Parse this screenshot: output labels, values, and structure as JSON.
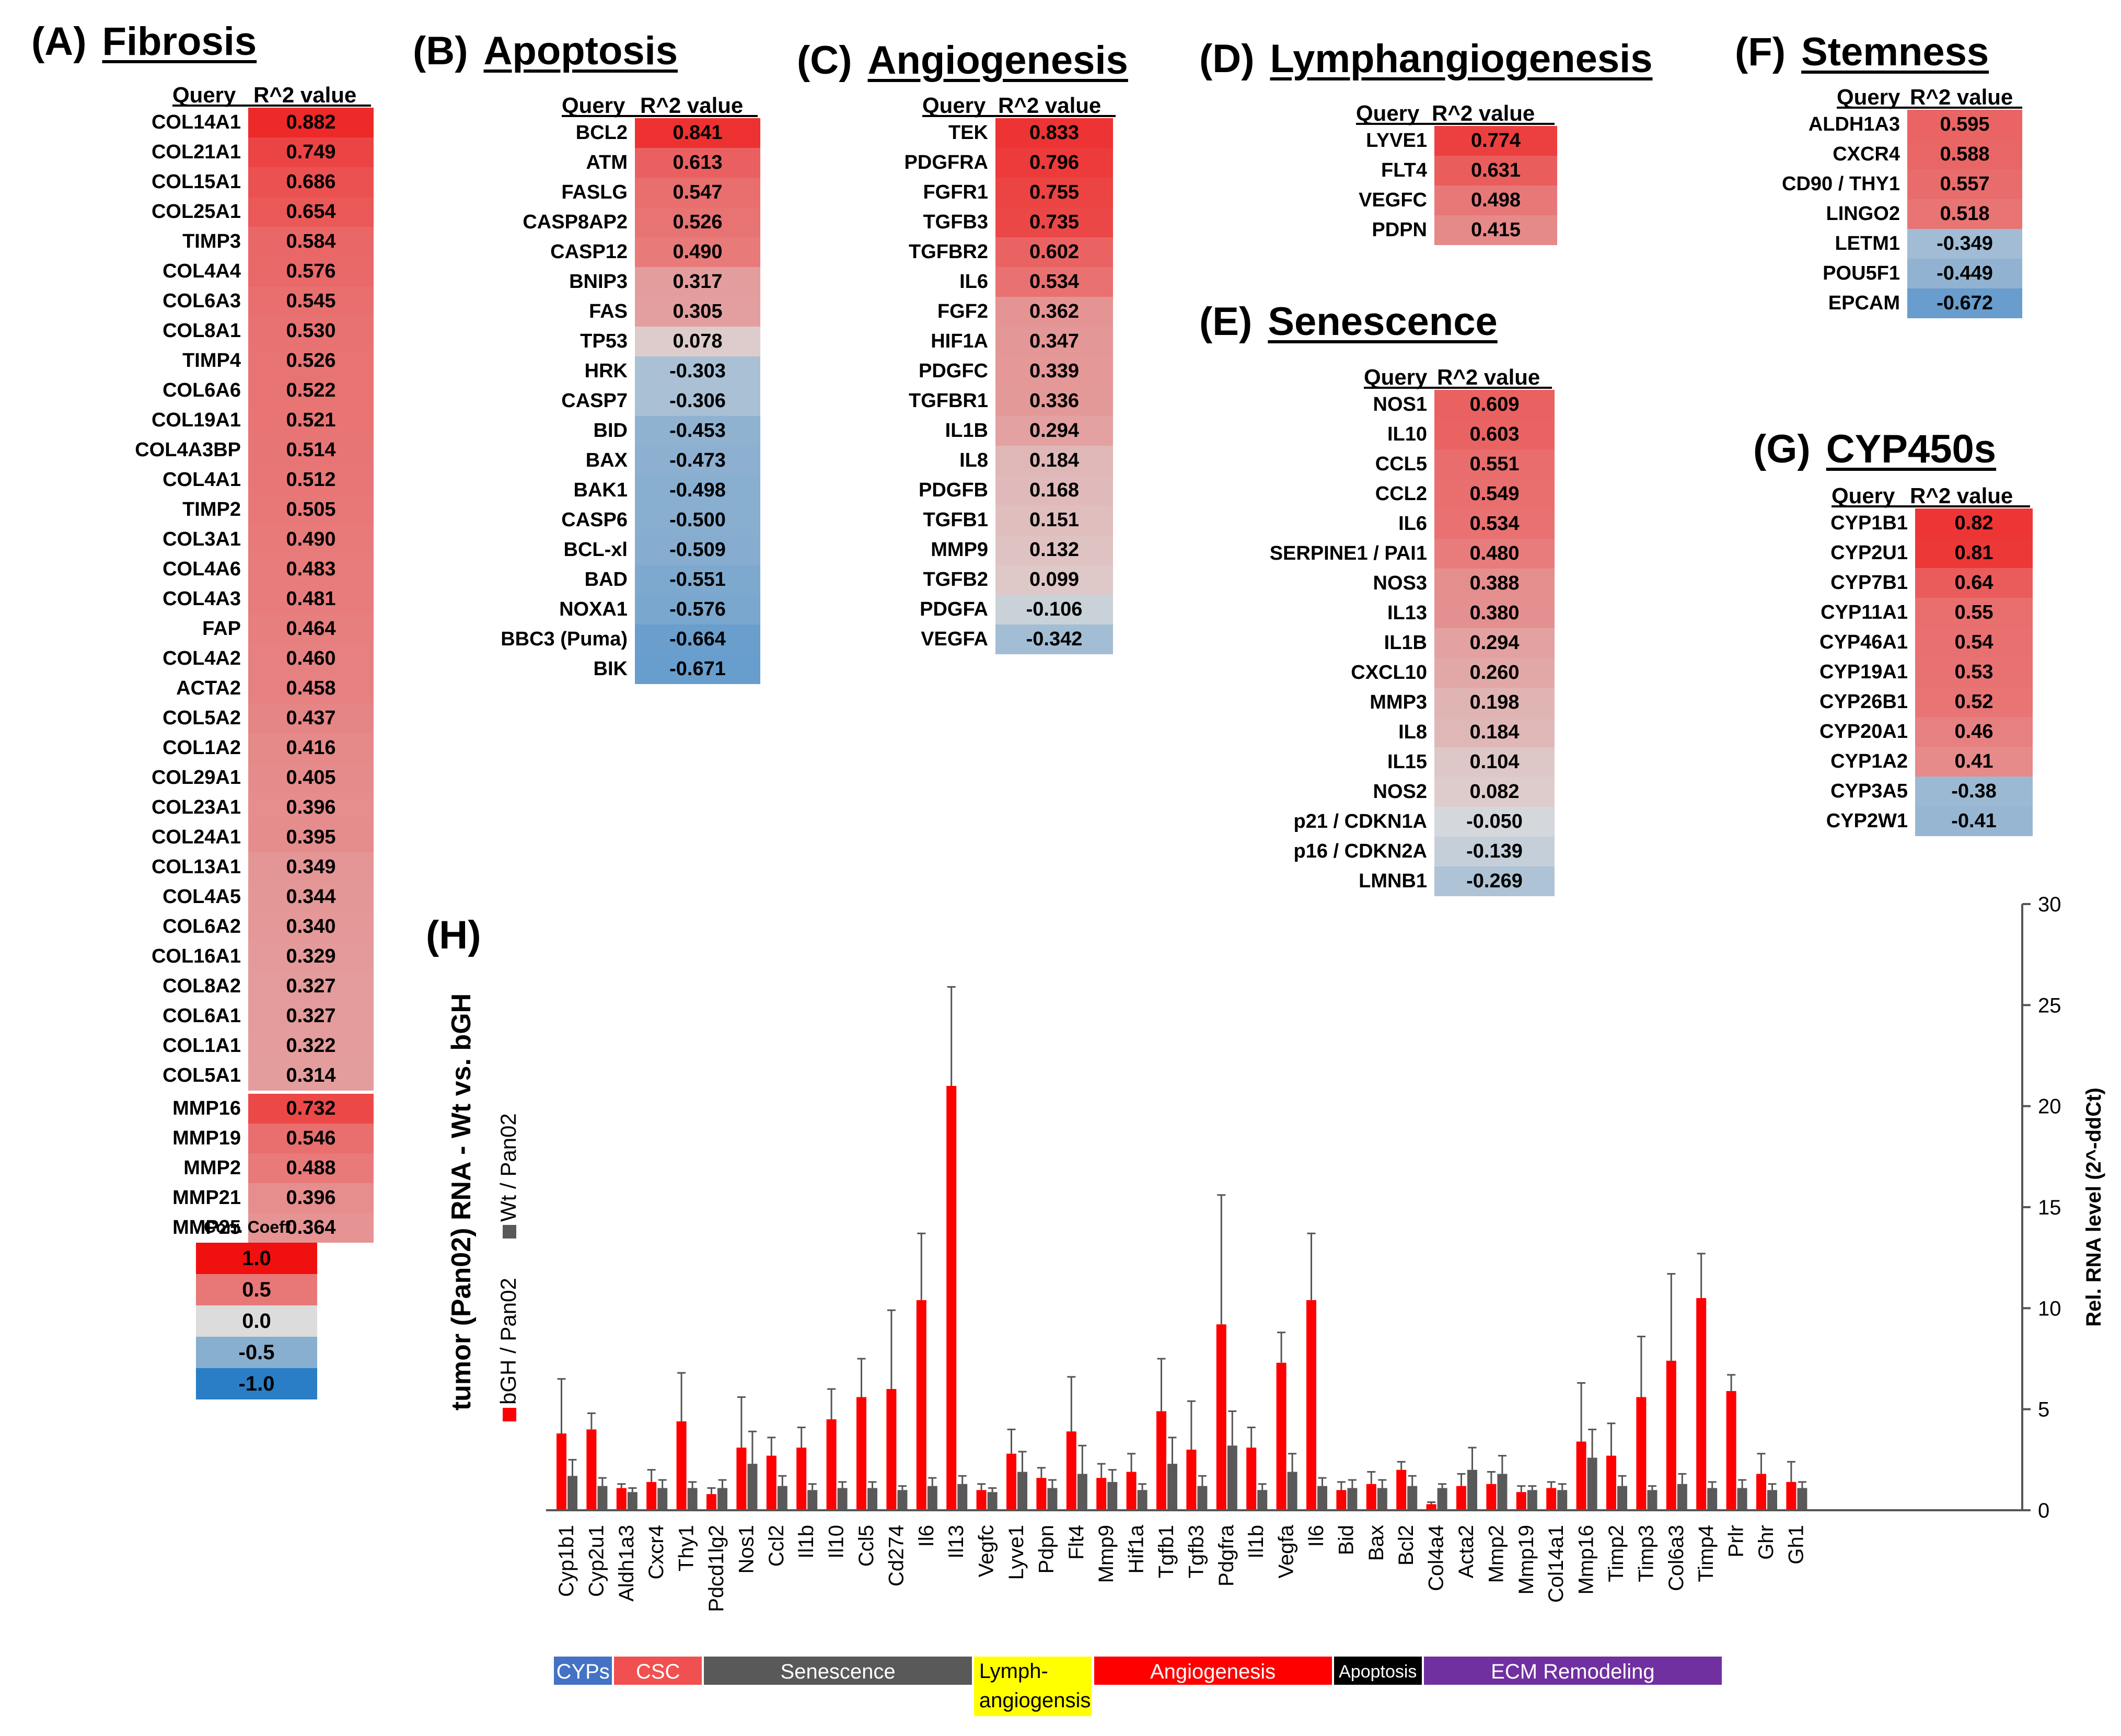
{
  "colors": {
    "high": "#f01010",
    "mid_pos": "#e87878",
    "zero": "#dcdcdc",
    "mid_neg": "#88aed0",
    "low": "#2a7ec6"
  },
  "header_query": "Query",
  "header_value": "R^2 value",
  "panels": {
    "A": {
      "letter": "(A)",
      "title": "Fibrosis",
      "rows": [
        {
          "q": "COL14A1",
          "v": "0.882"
        },
        {
          "q": "COL21A1",
          "v": "0.749"
        },
        {
          "q": "COL15A1",
          "v": "0.686"
        },
        {
          "q": "COL25A1",
          "v": "0.654"
        },
        {
          "q": "TIMP3",
          "v": "0.584"
        },
        {
          "q": "COL4A4",
          "v": "0.576"
        },
        {
          "q": "COL6A3",
          "v": "0.545"
        },
        {
          "q": "COL8A1",
          "v": "0.530"
        },
        {
          "q": "TIMP4",
          "v": "0.526"
        },
        {
          "q": "COL6A6",
          "v": "0.522"
        },
        {
          "q": "COL19A1",
          "v": "0.521"
        },
        {
          "q": "COL4A3BP",
          "v": "0.514"
        },
        {
          "q": "COL4A1",
          "v": "0.512"
        },
        {
          "q": "TIMP2",
          "v": "0.505"
        },
        {
          "q": "COL3A1",
          "v": "0.490"
        },
        {
          "q": "COL4A6",
          "v": "0.483"
        },
        {
          "q": "COL4A3",
          "v": "0.481"
        },
        {
          "q": "FAP",
          "v": "0.464"
        },
        {
          "q": "COL4A2",
          "v": "0.460"
        },
        {
          "q": "ACTA2",
          "v": "0.458"
        },
        {
          "q": "COL5A2",
          "v": "0.437"
        },
        {
          "q": "COL1A2",
          "v": "0.416"
        },
        {
          "q": "COL29A1",
          "v": "0.405"
        },
        {
          "q": "COL23A1",
          "v": "0.396"
        },
        {
          "q": "COL24A1",
          "v": "0.395"
        },
        {
          "q": "COL13A1",
          "v": "0.349"
        },
        {
          "q": "COL4A5",
          "v": "0.344"
        },
        {
          "q": "COL6A2",
          "v": "0.340"
        },
        {
          "q": "COL16A1",
          "v": "0.329"
        },
        {
          "q": "COL8A2",
          "v": "0.327"
        },
        {
          "q": "COL6A1",
          "v": "0.327"
        },
        {
          "q": "COL1A1",
          "v": "0.322"
        },
        {
          "q": "COL5A1",
          "v": "0.314"
        }
      ],
      "rows2": [
        {
          "q": "MMP16",
          "v": "0.732"
        },
        {
          "q": "MMP19",
          "v": "0.546"
        },
        {
          "q": "MMP2",
          "v": "0.488"
        },
        {
          "q": "MMP21",
          "v": "0.396"
        },
        {
          "q": "MMP25",
          "v": "0.364"
        }
      ]
    },
    "B": {
      "letter": "(B)",
      "title": "Apoptosis",
      "rows": [
        {
          "q": "BCL2",
          "v": "0.841"
        },
        {
          "q": "ATM",
          "v": "0.613"
        },
        {
          "q": "FASLG",
          "v": "0.547"
        },
        {
          "q": "CASP8AP2",
          "v": "0.526"
        },
        {
          "q": "CASP12",
          "v": "0.490"
        },
        {
          "q": "BNIP3",
          "v": "0.317"
        },
        {
          "q": "FAS",
          "v": "0.305"
        },
        {
          "q": "TP53",
          "v": "0.078"
        },
        {
          "q": "HRK",
          "v": "-0.303"
        },
        {
          "q": "CASP7",
          "v": "-0.306"
        },
        {
          "q": "BID",
          "v": "-0.453"
        },
        {
          "q": "BAX",
          "v": "-0.473"
        },
        {
          "q": "BAK1",
          "v": "-0.498"
        },
        {
          "q": "CASP6",
          "v": "-0.500"
        },
        {
          "q": "BCL-xl",
          "v": "-0.509"
        },
        {
          "q": "BAD",
          "v": "-0.551"
        },
        {
          "q": "NOXA1",
          "v": "-0.576"
        },
        {
          "q": "BBC3 (Puma)",
          "v": "-0.664"
        },
        {
          "q": "BIK",
          "v": "-0.671"
        }
      ]
    },
    "C": {
      "letter": "(C)",
      "title": "Angiogenesis",
      "rows": [
        {
          "q": "TEK",
          "v": "0.833"
        },
        {
          "q": "PDGFRA",
          "v": "0.796"
        },
        {
          "q": "FGFR1",
          "v": "0.755"
        },
        {
          "q": "TGFB3",
          "v": "0.735"
        },
        {
          "q": "TGFBR2",
          "v": "0.602"
        },
        {
          "q": "IL6",
          "v": "0.534"
        },
        {
          "q": "FGF2",
          "v": "0.362"
        },
        {
          "q": "HIF1A",
          "v": "0.347"
        },
        {
          "q": "PDGFC",
          "v": "0.339"
        },
        {
          "q": "TGFBR1",
          "v": "0.336"
        },
        {
          "q": "IL1B",
          "v": "0.294"
        },
        {
          "q": "IL8",
          "v": "0.184"
        },
        {
          "q": "PDGFB",
          "v": "0.168"
        },
        {
          "q": "TGFB1",
          "v": "0.151"
        },
        {
          "q": "MMP9",
          "v": "0.132"
        },
        {
          "q": "TGFB2",
          "v": "0.099"
        },
        {
          "q": "PDGFA",
          "v": "-0.106"
        },
        {
          "q": "VEGFA",
          "v": "-0.342"
        }
      ]
    },
    "D": {
      "letter": "(D)",
      "title": "Lymphangiogenesis",
      "rows": [
        {
          "q": "LYVE1",
          "v": "0.774"
        },
        {
          "q": "FLT4",
          "v": "0.631"
        },
        {
          "q": "VEGFC",
          "v": "0.498"
        },
        {
          "q": "PDPN",
          "v": "0.415"
        }
      ]
    },
    "E": {
      "letter": "(E)",
      "title": "Senescence",
      "rows": [
        {
          "q": "NOS1",
          "v": "0.609"
        },
        {
          "q": "IL10",
          "v": "0.603"
        },
        {
          "q": "CCL5",
          "v": "0.551"
        },
        {
          "q": "CCL2",
          "v": "0.549"
        },
        {
          "q": "IL6",
          "v": "0.534"
        },
        {
          "q": "SERPINE1 / PAI1",
          "v": "0.480"
        },
        {
          "q": "NOS3",
          "v": "0.388"
        },
        {
          "q": "IL13",
          "v": "0.380"
        },
        {
          "q": "IL1B",
          "v": "0.294"
        },
        {
          "q": "CXCL10",
          "v": "0.260"
        },
        {
          "q": "MMP3",
          "v": "0.198"
        },
        {
          "q": "IL8",
          "v": "0.184"
        },
        {
          "q": "IL15",
          "v": "0.104"
        },
        {
          "q": "NOS2",
          "v": "0.082"
        },
        {
          "q": "p21 / CDKN1A",
          "v": "-0.050"
        },
        {
          "q": "p16 / CDKN2A",
          "v": "-0.139"
        },
        {
          "q": "LMNB1",
          "v": "-0.269"
        }
      ]
    },
    "F": {
      "letter": "(F)",
      "title": "Stemness",
      "rows": [
        {
          "q": "ALDH1A3",
          "v": "0.595"
        },
        {
          "q": "CXCR4",
          "v": "0.588"
        },
        {
          "q": "CD90 / THY1",
          "v": "0.557"
        },
        {
          "q": "LINGO2",
          "v": "0.518"
        },
        {
          "q": "LETM1",
          "v": "-0.349"
        },
        {
          "q": "POU5F1",
          "v": "-0.449"
        },
        {
          "q": "EPCAM",
          "v": "-0.672"
        }
      ]
    },
    "G": {
      "letter": "(G)",
      "title": "CYP450s",
      "rows": [
        {
          "q": "CYP1B1",
          "v": "0.82"
        },
        {
          "q": "CYP2U1",
          "v": "0.81"
        },
        {
          "q": "CYP7B1",
          "v": "0.64"
        },
        {
          "q": "CYP11A1",
          "v": "0.55"
        },
        {
          "q": "CYP46A1",
          "v": "0.54"
        },
        {
          "q": "CYP19A1",
          "v": "0.53"
        },
        {
          "q": "CYP26B1",
          "v": "0.52"
        },
        {
          "q": "CYP20A1",
          "v": "0.46"
        },
        {
          "q": "CYP1A2",
          "v": "0.41"
        },
        {
          "q": "CYP3A5",
          "v": "-0.38"
        },
        {
          "q": "CYP2W1",
          "v": "-0.41"
        }
      ]
    }
  },
  "legend": {
    "title": "Corr. Coeff",
    "values": [
      "1.0",
      "0.5",
      "0.0",
      "-0.5",
      "-1.0"
    ]
  },
  "chart_data": {
    "type": "bar",
    "panel_label": "(H)",
    "title": "",
    "xlabel": "",
    "ylabel_left": "tumor (Pan02) RNA - Wt vs. bGH",
    "ylabel": "Rel. RNA level (2^-ddCt)",
    "ylim": [
      0,
      30
    ],
    "yticks": [
      0,
      5,
      10,
      15,
      20,
      25,
      30
    ],
    "categories": [
      "Cyp1b1",
      "Cyp2u1",
      "Aldh1a3",
      "Cxcr4",
      "Thy1",
      "Pdcd1lg2",
      "Nos1",
      "Ccl2",
      "Il1b",
      "Il10",
      "Ccl5",
      "Cd274",
      "Il6",
      "Il13",
      "Vegfc",
      "Lyve1",
      "Pdpn",
      "Flt4",
      "Mmp9",
      "Hif1a",
      "Tgfb1",
      "Tgfb3",
      "Pdgfra",
      "Il1b",
      "Vegfa",
      "Il6",
      "Bid",
      "Bax",
      "Bcl2",
      "Col4a4",
      "Acta2",
      "Mmp2",
      "Mmp19",
      "Col14a1",
      "Mmp16",
      "Timp2",
      "Timp3",
      "Col6a3",
      "Timp4",
      "Prlr",
      "Ghr",
      "Gh1"
    ],
    "series": [
      {
        "name": "bGH / Pan02",
        "color": "#ff0000",
        "values": [
          3.8,
          4.0,
          1.1,
          1.4,
          4.4,
          0.8,
          3.1,
          2.7,
          3.1,
          4.5,
          5.6,
          6.0,
          10.4,
          21.0,
          1.0,
          2.8,
          1.6,
          3.9,
          1.6,
          1.9,
          4.9,
          3.0,
          9.2,
          3.1,
          7.3,
          10.4,
          1.0,
          1.3,
          2.0,
          0.3,
          1.2,
          1.3,
          0.9,
          1.1,
          3.4,
          2.7,
          5.6,
          7.4,
          10.5,
          5.9,
          1.8,
          1.4
        ],
        "errors": [
          2.7,
          0.8,
          0.2,
          0.6,
          2.4,
          0.3,
          2.5,
          0.9,
          1.0,
          1.5,
          1.9,
          3.9,
          3.3,
          4.9,
          0.3,
          1.2,
          0.5,
          2.7,
          0.7,
          0.9,
          2.6,
          2.4,
          6.4,
          1.0,
          1.5,
          3.3,
          0.4,
          0.6,
          0.4,
          0.1,
          0.6,
          0.6,
          0.3,
          0.3,
          2.9,
          1.6,
          3.0,
          4.3,
          2.2,
          0.8,
          1.0,
          1.0
        ]
      },
      {
        "name": "Wt / Pan02",
        "color": "#595959",
        "values": [
          1.7,
          1.2,
          0.9,
          1.1,
          1.1,
          1.1,
          2.3,
          1.2,
          1.0,
          1.1,
          1.1,
          1.0,
          1.2,
          1.3,
          0.9,
          1.9,
          1.1,
          1.8,
          1.4,
          1.0,
          2.3,
          1.2,
          3.2,
          1.0,
          1.9,
          1.2,
          1.1,
          1.1,
          1.2,
          1.1,
          2.0,
          1.8,
          1.0,
          1.0,
          2.6,
          1.2,
          1.0,
          1.3,
          1.1,
          1.1,
          1.0,
          1.1
        ],
        "errors": [
          0.8,
          0.4,
          0.2,
          0.4,
          0.3,
          0.4,
          1.6,
          0.5,
          0.3,
          0.3,
          0.3,
          0.2,
          0.4,
          0.4,
          0.2,
          1.0,
          0.4,
          1.4,
          0.6,
          0.3,
          1.3,
          0.5,
          1.7,
          0.3,
          0.9,
          0.4,
          0.4,
          0.4,
          0.5,
          0.2,
          1.1,
          0.9,
          0.2,
          0.3,
          1.4,
          0.5,
          0.2,
          0.5,
          0.3,
          0.4,
          0.3,
          0.3
        ]
      }
    ],
    "groups": [
      {
        "label": "CYPs",
        "start": 0,
        "end": 1,
        "bg": "#4472c4",
        "fg": "#ffffff"
      },
      {
        "label": "CSC",
        "start": 2,
        "end": 4,
        "bg": "#f05050",
        "fg": "#ffffff"
      },
      {
        "label": "Senescence",
        "start": 5,
        "end": 13,
        "bg": "#595959",
        "fg": "#ffffff"
      },
      {
        "label": "Lymph-\nangiogensis",
        "start": 14,
        "end": 17,
        "bg": "#ffff00",
        "fg": "#000000"
      },
      {
        "label": "Angiogenesis",
        "start": 18,
        "end": 25,
        "bg": "#ff0000",
        "fg": "#ffffff"
      },
      {
        "label": "Apoptosis",
        "start": 26,
        "end": 28,
        "bg": "#000000",
        "fg": "#ffffff"
      },
      {
        "label": "ECM Remodeling",
        "start": 29,
        "end": 38,
        "bg": "#7030a0",
        "fg": "#ffffff"
      }
    ]
  }
}
